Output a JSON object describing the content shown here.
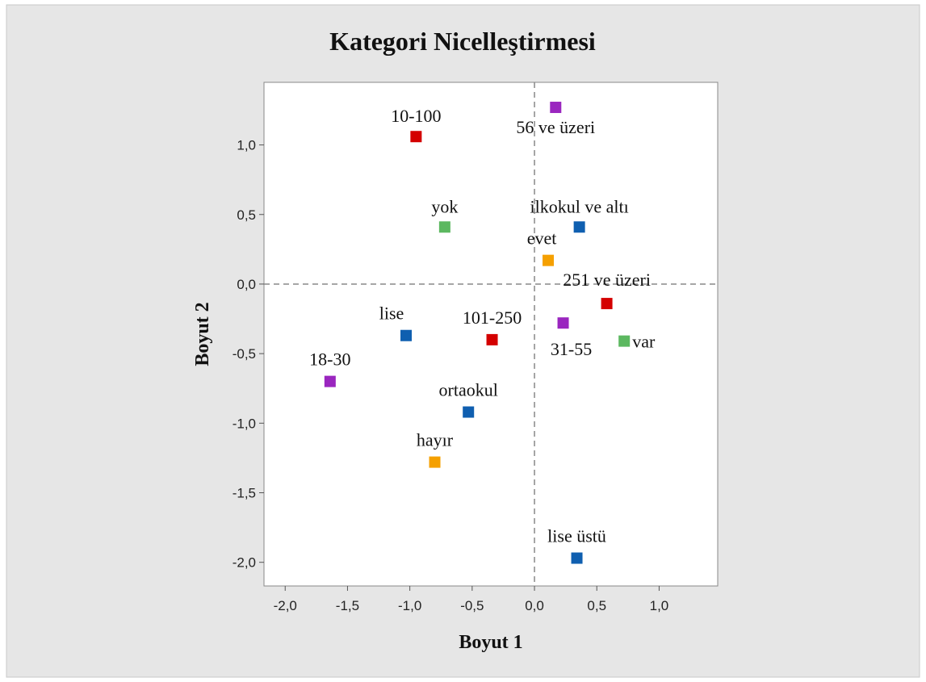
{
  "chart_data": {
    "type": "scatter",
    "title": "Kategori Nicelleştirmesi",
    "x_label": "Boyut 1",
    "y_label": "Boyut 2",
    "labels": [
      "10-100",
      "56 ve üzeri",
      "yok",
      "ilkokul ve altı",
      "evet",
      "251 ve üzeri",
      "lise",
      "101-250",
      "31-55",
      "var",
      "18-30",
      "ortaokul",
      "hayır",
      "lise üstü"
    ],
    "x": [
      -0.95,
      0.17,
      -0.72,
      0.36,
      0.11,
      0.58,
      -1.03,
      -0.34,
      0.23,
      0.72,
      -1.64,
      -0.53,
      -0.8,
      0.34
    ],
    "values": [
      1.06,
      1.27,
      0.41,
      0.41,
      0.17,
      -0.14,
      -0.37,
      -0.4,
      -0.28,
      -0.41,
      -0.7,
      -0.92,
      -1.28,
      -1.97
    ],
    "colors": [
      "#d40000",
      "#9a26bf",
      "#5cb860",
      "#0f5fb0",
      "#f5a000",
      "#d40000",
      "#0f5fb0",
      "#d40000",
      "#9a26bf",
      "#5cb860",
      "#9a26bf",
      "#0f5fb0",
      "#f5a000",
      "#0f5fb0"
    ],
    "xlim": [
      -2.17,
      1.47
    ],
    "ylim": [
      -2.17,
      1.45
    ],
    "xticks": [
      {
        "value": -2.0,
        "label": "-2,0"
      },
      {
        "value": -1.5,
        "label": "-1,5"
      },
      {
        "value": -1.0,
        "label": "-1,0"
      },
      {
        "value": -0.5,
        "label": "-0,5"
      },
      {
        "value": 0.0,
        "label": "0,0"
      },
      {
        "value": 0.5,
        "label": "0,5"
      },
      {
        "value": 1.0,
        "label": "1,0"
      }
    ],
    "yticks": [
      {
        "value": -2.0,
        "label": "-2,0"
      },
      {
        "value": -1.5,
        "label": "-1,5"
      },
      {
        "value": -1.0,
        "label": "-1,0"
      },
      {
        "value": -0.5,
        "label": "-0,5"
      },
      {
        "value": 0.0,
        "label": "0,0"
      },
      {
        "value": 0.5,
        "label": "0,5"
      },
      {
        "value": 1.0,
        "label": "1,0"
      }
    ]
  }
}
